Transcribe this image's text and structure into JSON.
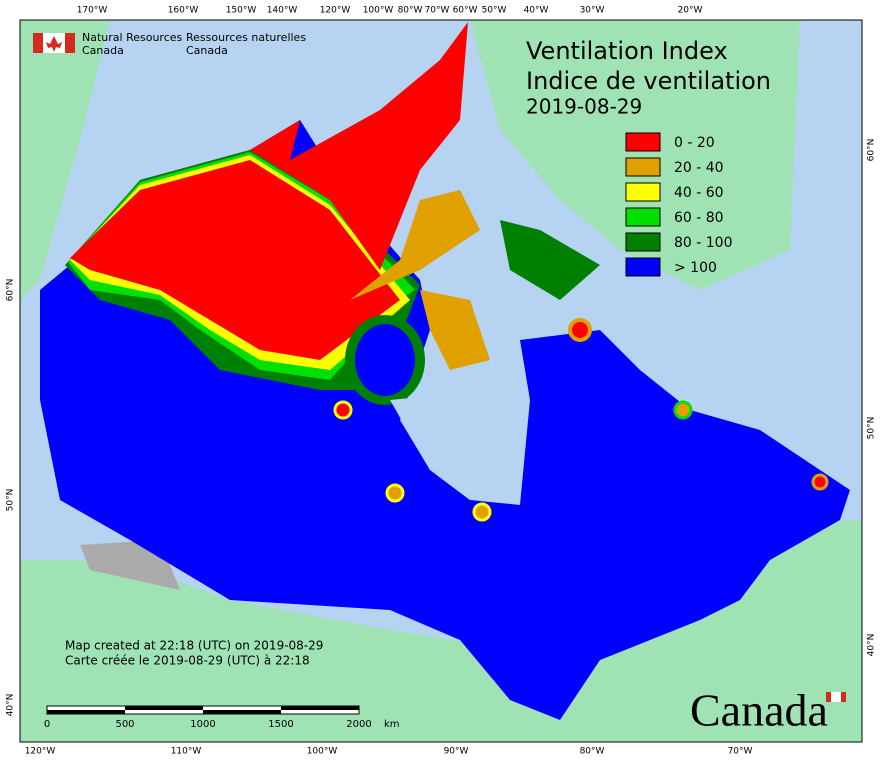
{
  "header": {
    "title_en": "Ventilation Index",
    "title_fr": "Indice de ventilation",
    "date": "2019-08-29"
  },
  "agency": {
    "en_line1": "Natural Resources",
    "en_line2": "Canada",
    "fr_line1": "Ressources naturelles",
    "fr_line2": "Canada"
  },
  "legend": [
    {
      "label": "0 - 20",
      "color": "#ff0000"
    },
    {
      "label": "20 - 40",
      "color": "#e0a000"
    },
    {
      "label": "40 - 60",
      "color": "#ffff00"
    },
    {
      "label": "60 - 80",
      "color": "#00e000"
    },
    {
      "label": "80 - 100",
      "color": "#008000"
    },
    {
      "label": "> 100",
      "color": "#0000ff"
    }
  ],
  "top_labels": [
    "170°W",
    "160°W",
    "150°W",
    "140°W",
    "120°W",
    "100°W",
    "80°W",
    "70°W",
    "60°W",
    "50°W",
    "40°W",
    "30°W",
    "20°W"
  ],
  "bottom_labels": [
    "120°W",
    "110°W",
    "100°W",
    "90°W",
    "80°W",
    "70°W"
  ],
  "left_labels": [
    "60°N",
    "50°N",
    "40°N"
  ],
  "right_labels": [
    "60°N",
    "50°N",
    "40°N"
  ],
  "notes": [
    "Map created at 22:18 (UTC) on 2019-08-29",
    "Carte créée le 2019-08-29 (UTC) à 22:18"
  ],
  "scale_bar": {
    "ticks": [
      "0",
      "500",
      "1000",
      "1500",
      "2000"
    ],
    "unit": "km"
  },
  "wordmark": "Canada"
}
